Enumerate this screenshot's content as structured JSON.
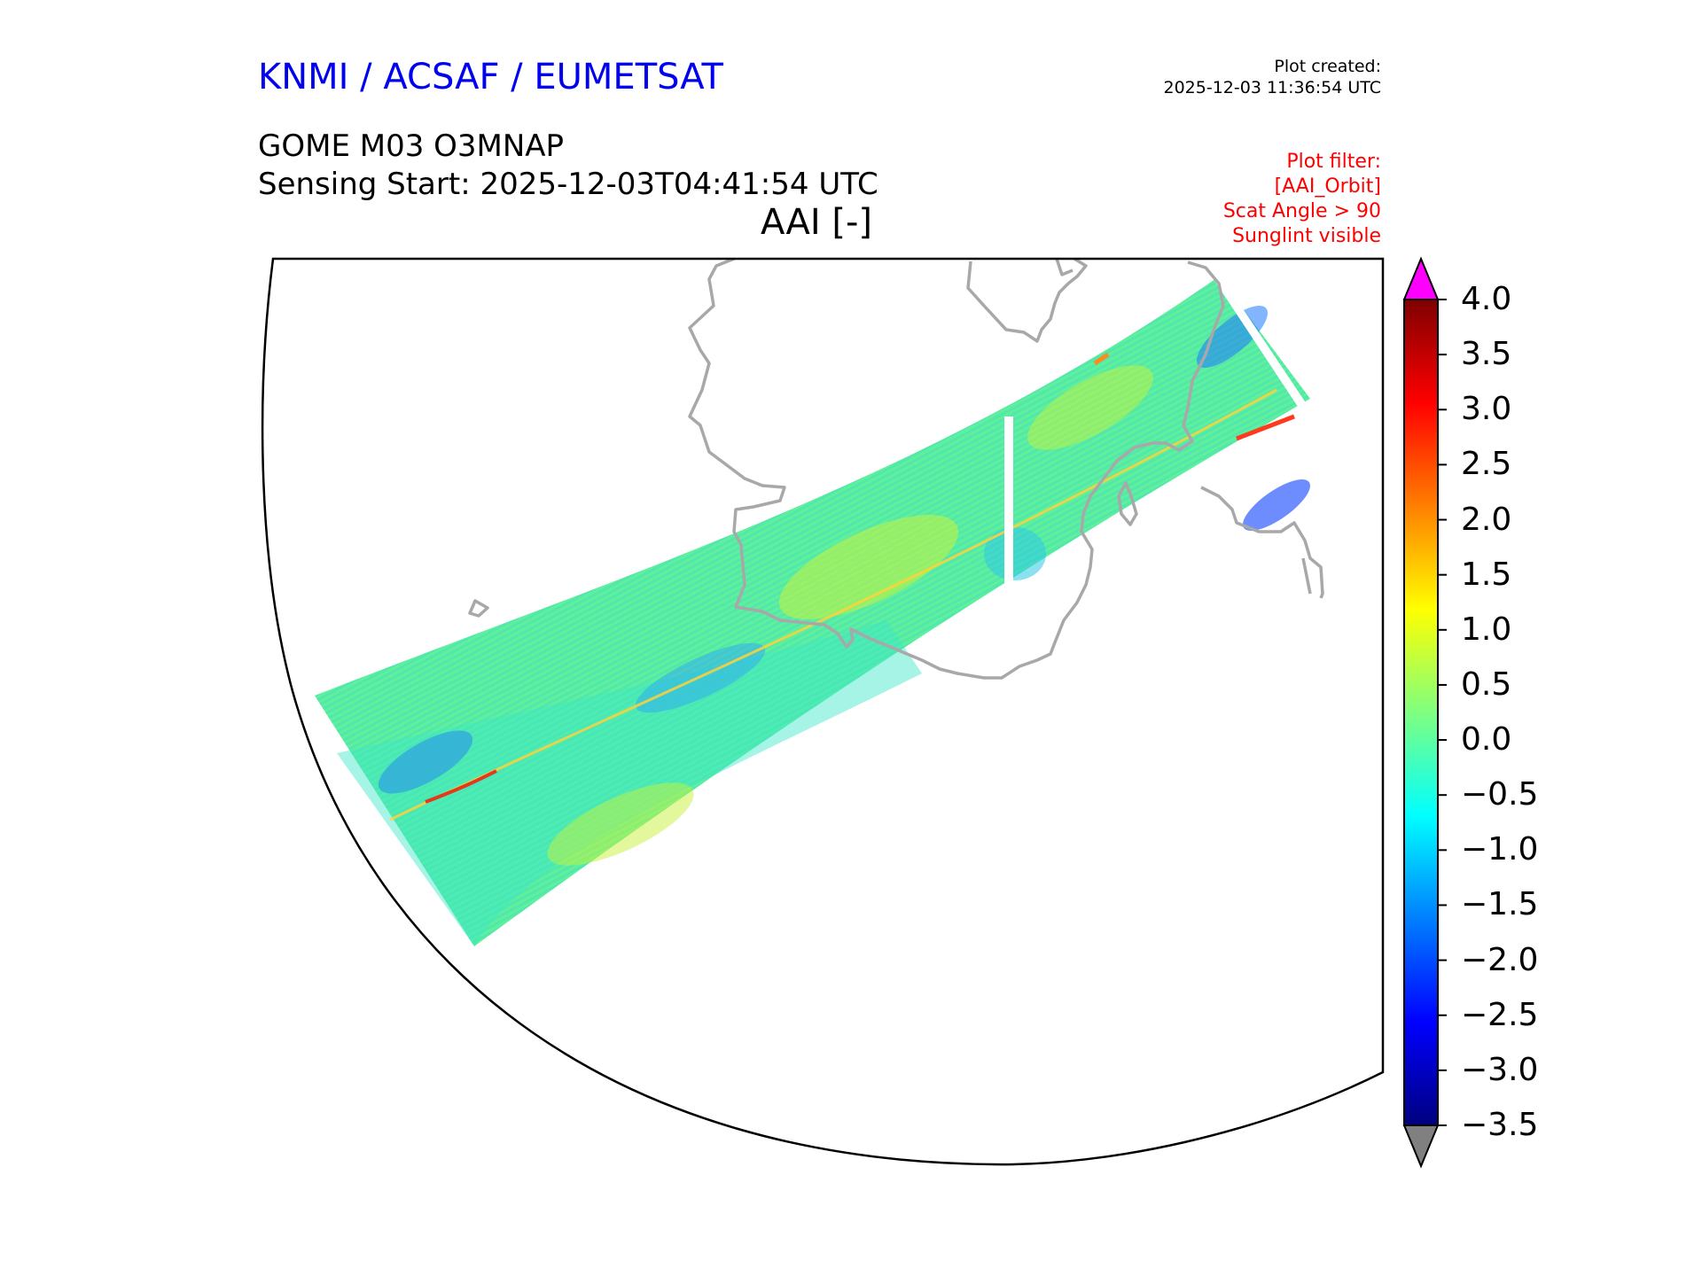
{
  "header": {
    "organization": "KNMI / ACSAF / EUMETSAT",
    "plot_created_label": "Plot created:",
    "plot_created_time": "2025-12-03 11:36:54 UTC",
    "product": "GOME M03 O3MNAP",
    "sensing_start": "Sensing Start: 2025-12-03T04:41:54 UTC",
    "variable_title": "AAI [-]"
  },
  "filter": {
    "lines": [
      "Plot filter:",
      "[AAI_Orbit]",
      "Scat Angle > 90",
      "Sunglint visible"
    ]
  },
  "colors": {
    "org": "#0000ee",
    "filter": "#ff0000",
    "coastline": "#a0a0a0",
    "over": "#ff00ff",
    "under": "#808080"
  },
  "colorbar": {
    "min": -3.5,
    "max": 4.0,
    "ticks": [
      "4.0",
      "3.5",
      "3.0",
      "2.5",
      "2.0",
      "1.5",
      "1.0",
      "0.5",
      "0.0",
      "−0.5",
      "−1.0",
      "−1.5",
      "−2.0",
      "−2.5",
      "−3.0",
      "−3.5"
    ],
    "stops": [
      "#00007f",
      "#0000ff",
      "#007fff",
      "#00ffff",
      "#7fff7f",
      "#ffff00",
      "#ff7f00",
      "#ff0000",
      "#7f0000"
    ]
  }
}
